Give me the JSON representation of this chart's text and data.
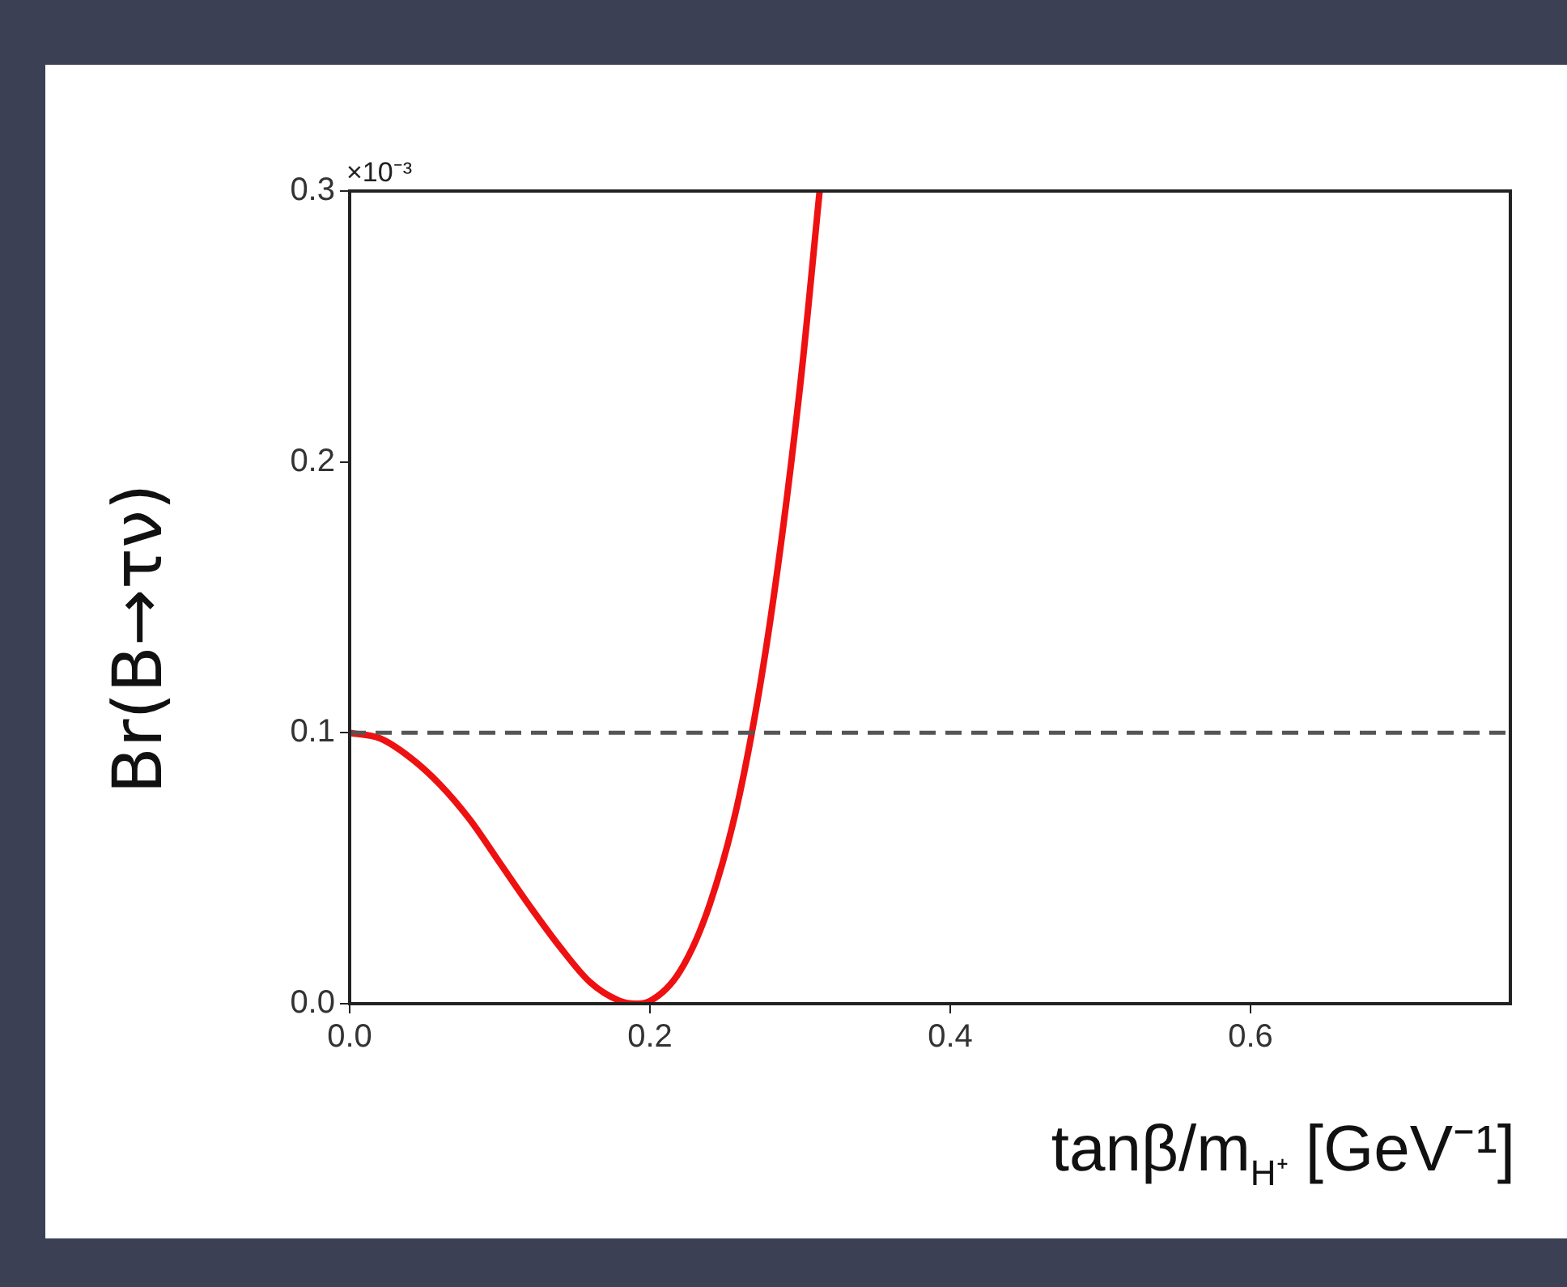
{
  "chart_data": {
    "type": "line",
    "xlabel": "tanβ/m$_{H⁺}$ [GeV⁻¹]",
    "ylabel": "Br(B→τν)",
    "annotations": [
      "×10⁻³"
    ],
    "x": [
      0,
      0.02,
      0.04,
      0.06,
      0.08,
      0.1,
      0.12,
      0.14,
      0.16,
      0.18,
      0.19,
      0.2,
      0.22,
      0.24,
      0.26,
      0.28,
      0.3,
      0.313
    ],
    "series": [
      {
        "color": "#ee1111",
        "values": [
          0.1,
          0.098,
          0.091,
          0.081,
          0.068,
          0.052,
          0.036,
          0.021,
          0.008,
          0.001,
          0,
          0.001,
          0.012,
          0.037,
          0.078,
          0.141,
          0.228,
          0.3
        ]
      }
    ],
    "xlim": [
      0,
      0.773
    ],
    "ylim": [
      0,
      0.3
    ],
    "xticks": [
      {
        "value": 0,
        "label": "0.0"
      },
      0.2,
      0.4,
      0.6
    ],
    "yticks": [
      {
        "value": 0,
        "label": "0.0"
      },
      0.1,
      0.2,
      0.3
    ],
    "ref_lines": [
      {
        "axis": "y",
        "value": 0.1,
        "color": "#555555",
        "line_style": "dashed"
      }
    ],
    "marker": "none",
    "line_style": "solid",
    "legend": false
  }
}
